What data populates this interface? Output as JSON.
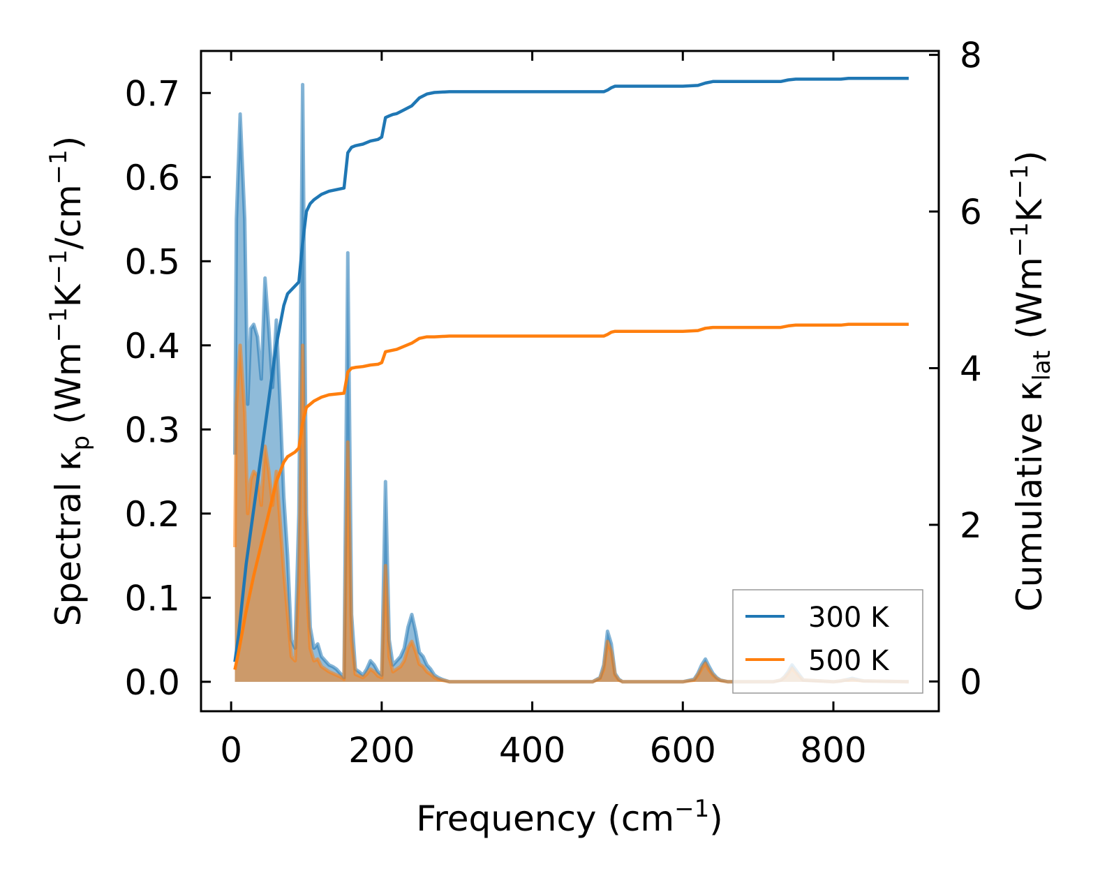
{
  "chart_data": {
    "type": "line",
    "xlabel": "Frequency (cm",
    "xlabel_sup": "−1",
    "xlabel_end": ")",
    "ylabel_left": {
      "pre": "Spectral κ",
      "sub": "p",
      "unit_a": " (Wm",
      "sup_a": "−1",
      "unit_b": "K",
      "sup_b": "−1",
      "unit_c": "/cm",
      "sup_c": "−1",
      "end": ")"
    },
    "ylabel_right": {
      "pre": "Cumulative κ",
      "sub": "lat",
      "unit_a": " (Wm",
      "sup_a": "−1",
      "unit_b": "K",
      "sup_b": "−1",
      "end": ")"
    },
    "xlim": [
      -40,
      940
    ],
    "ylim_left": [
      -0.035,
      0.75
    ],
    "ylim_right": [
      -0.38,
      8.05
    ],
    "xticks": [
      0,
      200,
      400,
      600,
      800
    ],
    "xtick_labels": [
      "0",
      "200",
      "400",
      "600",
      "800"
    ],
    "yticks_left": [
      0.0,
      0.1,
      0.2,
      0.3,
      0.4,
      0.5,
      0.6,
      0.7
    ],
    "ytick_labels_left": [
      "0.0",
      "0.1",
      "0.2",
      "0.3",
      "0.4",
      "0.5",
      "0.6",
      "0.7"
    ],
    "yticks_right": [
      0,
      2,
      4,
      6,
      8
    ],
    "ytick_labels_right": [
      "0",
      "2",
      "4",
      "6",
      "8"
    ],
    "legend": {
      "location": "lower-right",
      "entries": [
        "300 K",
        "500 K"
      ]
    },
    "colors": {
      "s300": "#1f77b4",
      "s500": "#ff7f0e",
      "fill300": "#1f77b4",
      "fill500": "#ff7f0e"
    },
    "spectral": [
      {
        "name": "300 K",
        "x": [
          5,
          7,
          12,
          18,
          22,
          26,
          30,
          35,
          40,
          45,
          50,
          55,
          60,
          65,
          70,
          75,
          80,
          85,
          90,
          95,
          100,
          105,
          110,
          115,
          120,
          125,
          130,
          135,
          140,
          145,
          150,
          155,
          160,
          165,
          170,
          175,
          180,
          185,
          190,
          195,
          200,
          205,
          210,
          215,
          220,
          225,
          230,
          235,
          240,
          245,
          250,
          255,
          260,
          265,
          270,
          275,
          280,
          290,
          480,
          490,
          495,
          500,
          505,
          510,
          515,
          520,
          600,
          615,
          620,
          625,
          630,
          635,
          640,
          645,
          650,
          660,
          720,
          730,
          735,
          740,
          745,
          750,
          755,
          760,
          800,
          810,
          815,
          820,
          825,
          830,
          835,
          840,
          900
        ],
        "y": [
          0.27,
          0.55,
          0.675,
          0.55,
          0.33,
          0.42,
          0.425,
          0.41,
          0.36,
          0.48,
          0.42,
          0.35,
          0.43,
          0.33,
          0.22,
          0.15,
          0.05,
          0.04,
          0.2,
          0.71,
          0.2,
          0.065,
          0.04,
          0.045,
          0.03,
          0.025,
          0.02,
          0.018,
          0.015,
          0.01,
          0.005,
          0.51,
          0.08,
          0.015,
          0.012,
          0.008,
          0.015,
          0.025,
          0.02,
          0.012,
          0.008,
          0.238,
          0.05,
          0.02,
          0.025,
          0.03,
          0.04,
          0.065,
          0.08,
          0.06,
          0.035,
          0.03,
          0.02,
          0.015,
          0.008,
          0.005,
          0.003,
          0.0,
          0.0,
          0.005,
          0.02,
          0.06,
          0.045,
          0.01,
          0.003,
          0.0,
          0.0,
          0.003,
          0.01,
          0.02,
          0.027,
          0.018,
          0.01,
          0.005,
          0.002,
          0.0,
          0.0,
          0.002,
          0.006,
          0.012,
          0.02,
          0.014,
          0.008,
          0.002,
          0.0,
          0.001,
          0.002,
          0.003,
          0.004,
          0.003,
          0.002,
          0.001,
          0.0
        ]
      },
      {
        "name": "500 K",
        "x": [
          5,
          7,
          12,
          18,
          22,
          26,
          30,
          35,
          40,
          45,
          50,
          55,
          60,
          65,
          70,
          75,
          80,
          85,
          90,
          95,
          100,
          105,
          110,
          115,
          120,
          125,
          130,
          135,
          140,
          145,
          150,
          155,
          160,
          165,
          170,
          175,
          180,
          185,
          190,
          195,
          200,
          205,
          210,
          215,
          220,
          225,
          230,
          235,
          240,
          245,
          250,
          255,
          260,
          265,
          270,
          275,
          280,
          290,
          480,
          490,
          495,
          500,
          505,
          510,
          515,
          520,
          600,
          615,
          620,
          625,
          630,
          635,
          640,
          645,
          650,
          660,
          720,
          730,
          735,
          740,
          745,
          750,
          755,
          760,
          800,
          810,
          815,
          820,
          825,
          830,
          835,
          840,
          900
        ],
        "y": [
          0.16,
          0.33,
          0.4,
          0.32,
          0.2,
          0.24,
          0.25,
          0.245,
          0.21,
          0.28,
          0.25,
          0.21,
          0.25,
          0.19,
          0.13,
          0.08,
          0.03,
          0.025,
          0.12,
          0.4,
          0.12,
          0.04,
          0.025,
          0.027,
          0.018,
          0.015,
          0.012,
          0.01,
          0.008,
          0.006,
          0.003,
          0.285,
          0.05,
          0.009,
          0.007,
          0.005,
          0.009,
          0.015,
          0.012,
          0.007,
          0.005,
          0.138,
          0.03,
          0.012,
          0.015,
          0.018,
          0.025,
          0.04,
          0.048,
          0.036,
          0.021,
          0.018,
          0.012,
          0.009,
          0.005,
          0.003,
          0.002,
          0.0,
          0.0,
          0.004,
          0.015,
          0.048,
          0.036,
          0.008,
          0.002,
          0.0,
          0.0,
          0.002,
          0.008,
          0.016,
          0.022,
          0.014,
          0.008,
          0.004,
          0.0015,
          0.0,
          0.0,
          0.002,
          0.005,
          0.01,
          0.016,
          0.011,
          0.006,
          0.002,
          0.0,
          0.001,
          0.002,
          0.002,
          0.003,
          0.002,
          0.0015,
          0.001,
          0.0
        ]
      }
    ],
    "cumulative": [
      {
        "name": "300 K",
        "x": [
          5,
          10,
          20,
          30,
          40,
          50,
          60,
          70,
          75,
          85,
          90,
          95,
          100,
          105,
          110,
          120,
          130,
          150,
          155,
          160,
          165,
          175,
          185,
          195,
          200,
          205,
          210,
          215,
          220,
          230,
          240,
          250,
          260,
          270,
          290,
          300,
          480,
          495,
          500,
          505,
          510,
          520,
          600,
          620,
          630,
          640,
          650,
          660,
          730,
          740,
          750,
          760,
          810,
          820,
          830,
          900
        ],
        "y": [
          0.25,
          0.6,
          1.5,
          2.2,
          2.9,
          3.6,
          4.3,
          4.8,
          4.95,
          5.05,
          5.1,
          5.6,
          6.0,
          6.1,
          6.15,
          6.22,
          6.26,
          6.3,
          6.75,
          6.82,
          6.84,
          6.86,
          6.9,
          6.92,
          6.95,
          7.2,
          7.22,
          7.24,
          7.25,
          7.3,
          7.35,
          7.45,
          7.5,
          7.52,
          7.53,
          7.53,
          7.53,
          7.53,
          7.55,
          7.58,
          7.6,
          7.6,
          7.6,
          7.61,
          7.64,
          7.66,
          7.66,
          7.66,
          7.66,
          7.68,
          7.69,
          7.69,
          7.69,
          7.7,
          7.7,
          7.7
        ]
      },
      {
        "name": "500 K",
        "x": [
          5,
          10,
          20,
          30,
          40,
          50,
          60,
          70,
          75,
          85,
          90,
          95,
          100,
          105,
          110,
          120,
          130,
          150,
          155,
          160,
          165,
          175,
          185,
          195,
          200,
          205,
          210,
          215,
          220,
          230,
          240,
          250,
          260,
          270,
          290,
          300,
          480,
          495,
          500,
          505,
          510,
          520,
          600,
          620,
          630,
          640,
          650,
          660,
          730,
          740,
          750,
          760,
          810,
          820,
          830,
          900
        ],
        "y": [
          0.15,
          0.38,
          0.9,
          1.35,
          1.75,
          2.15,
          2.55,
          2.8,
          2.87,
          2.93,
          2.98,
          3.3,
          3.5,
          3.54,
          3.58,
          3.63,
          3.66,
          3.68,
          3.95,
          4.0,
          4.01,
          4.02,
          4.04,
          4.05,
          4.07,
          4.21,
          4.22,
          4.23,
          4.24,
          4.28,
          4.32,
          4.38,
          4.4,
          4.4,
          4.41,
          4.41,
          4.41,
          4.41,
          4.43,
          4.46,
          4.47,
          4.47,
          4.47,
          4.48,
          4.51,
          4.52,
          4.52,
          4.52,
          4.52,
          4.54,
          4.55,
          4.55,
          4.55,
          4.56,
          4.56,
          4.56
        ]
      }
    ]
  }
}
